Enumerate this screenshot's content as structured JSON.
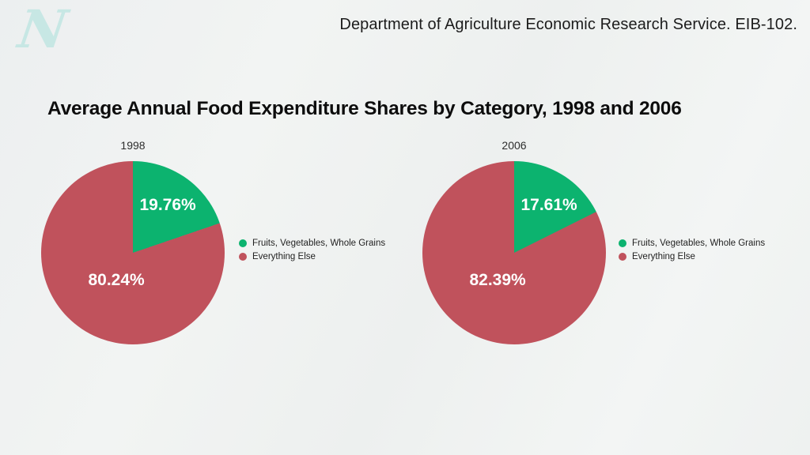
{
  "header": {
    "logo_glyph": "N",
    "logo_name": "nutritionfacts-n-logo",
    "citation": "Department of Agriculture Economic Research Service. EIB-102."
  },
  "title": "Average Annual Food Expenditure Shares by Category, 1998 and 2006",
  "colors": {
    "green": "#0cb36f",
    "red": "#c0525c",
    "background": "#eff1f0",
    "logo_teal": "#c7e7e4",
    "label_text": "#ffffff"
  },
  "legend": {
    "items": [
      {
        "label": "Fruits, Vegetables, Whole Grains",
        "color": "#0cb36f"
      },
      {
        "label": "Everything Else",
        "color": "#c0525c"
      }
    ]
  },
  "chart_data": [
    {
      "type": "pie",
      "title": "1998",
      "labels": [
        "Fruits, Vegetables, Whole Grains",
        "Everything Else"
      ],
      "values": [
        19.76,
        80.24
      ],
      "value_labels": [
        "19.76%",
        "80.24%"
      ],
      "colors": [
        "#0cb36f",
        "#c0525c"
      ],
      "start_angle_deg": 0,
      "direction": "clockwise",
      "legend_position": "right"
    },
    {
      "type": "pie",
      "title": "2006",
      "labels": [
        "Fruits, Vegetables, Whole Grains",
        "Everything Else"
      ],
      "values": [
        17.61,
        82.39
      ],
      "value_labels": [
        "17.61%",
        "82.39%"
      ],
      "colors": [
        "#0cb36f",
        "#c0525c"
      ],
      "start_angle_deg": 0,
      "direction": "clockwise",
      "legend_position": "right"
    }
  ]
}
